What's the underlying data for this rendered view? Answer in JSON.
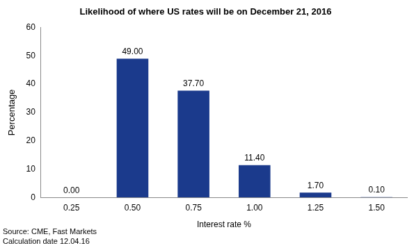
{
  "chart_data": {
    "type": "bar",
    "title": "Likelihood of where US rates will be on December 21, 2016",
    "x_label": "Interest rate %",
    "y_label": "Percentage",
    "categories": [
      "0.25",
      "0.50",
      "0.75",
      "1.00",
      "1.25",
      "1.50"
    ],
    "values": [
      0,
      49,
      37.7,
      11.4,
      1.7,
      0.1
    ],
    "value_labels": [
      "0.00",
      "49.00",
      "37.70",
      "11.40",
      "1.70",
      "0.10"
    ],
    "data_labels": true,
    "color": "#1b3a8c",
    "ylim": [
      0,
      60
    ],
    "yticks": [
      0,
      10,
      20,
      30,
      40,
      50,
      60
    ],
    "grid": false,
    "annotations": [
      "Source: CME, Fast Markets",
      "Calculation date 12.04.16"
    ]
  }
}
